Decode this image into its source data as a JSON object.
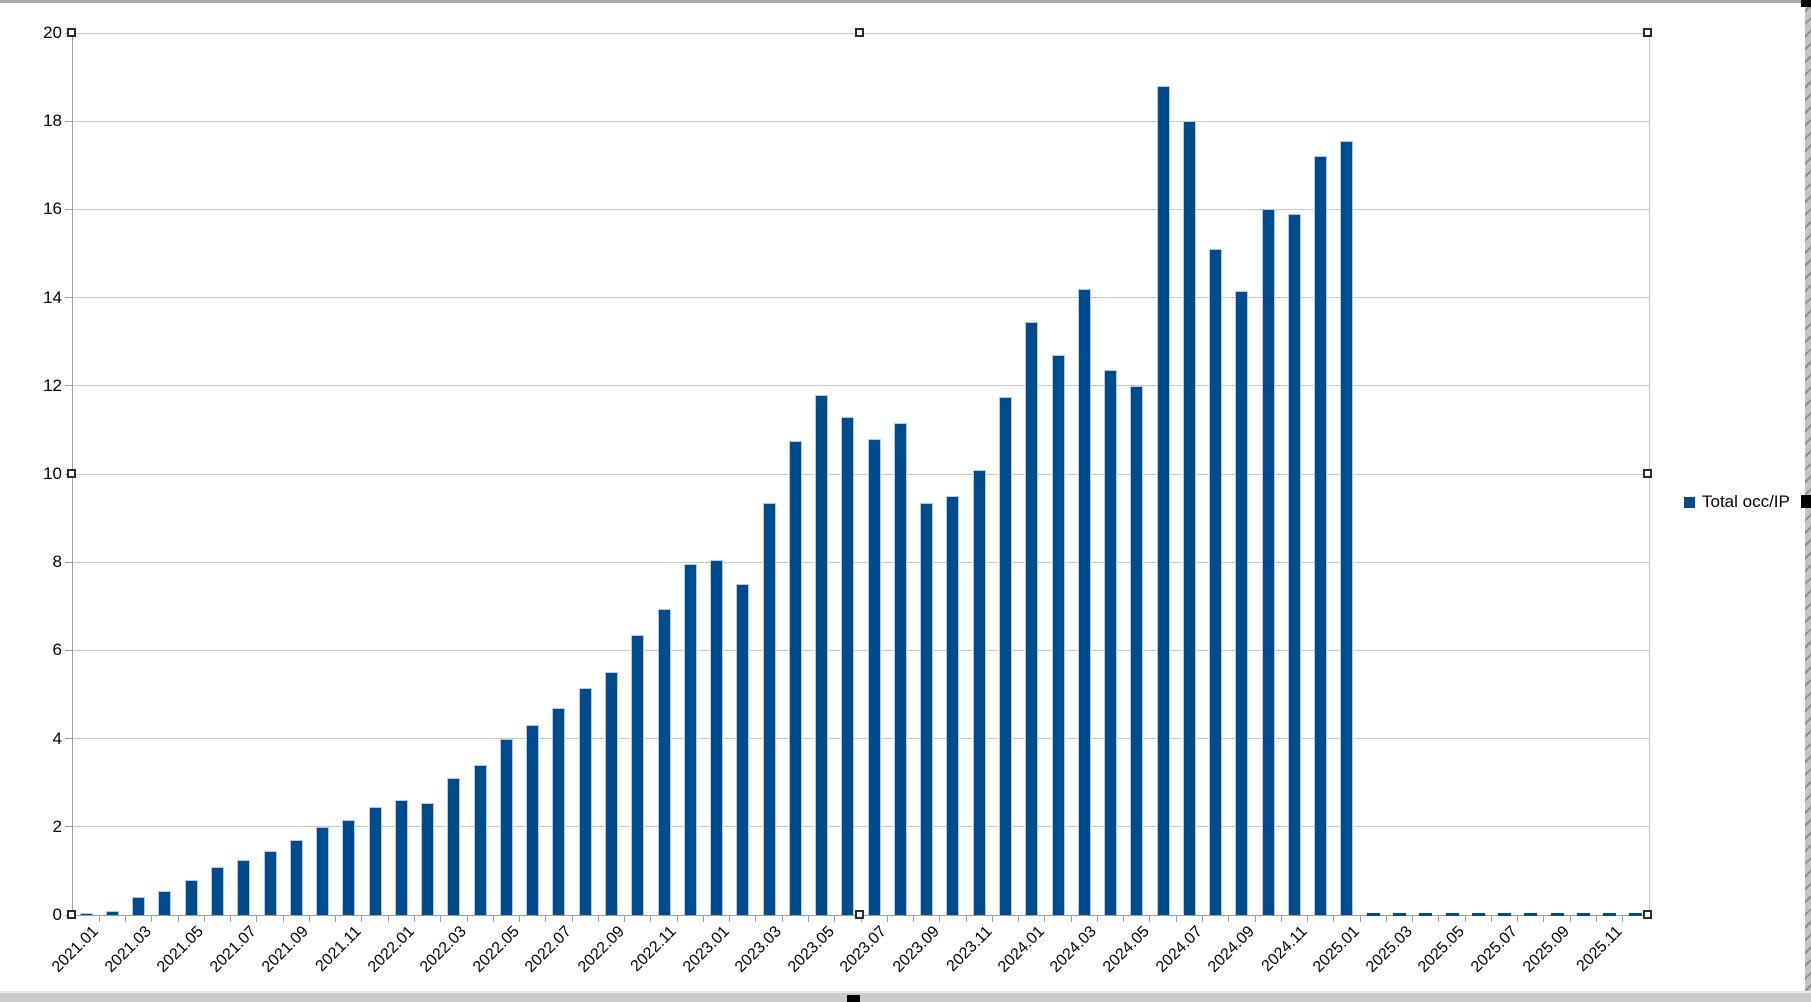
{
  "chart_data": {
    "type": "bar",
    "title": "",
    "legend": {
      "label": "Total occ/IP",
      "position": "right"
    },
    "series_name": "Total occ/IP",
    "series_color": "#004b8c",
    "grid": "horizontal-on",
    "ylim": [
      0,
      20
    ],
    "y_ticks": [
      0,
      2,
      4,
      6,
      8,
      10,
      12,
      14,
      16,
      18,
      20
    ],
    "categories": [
      "2021.01",
      "2021.02",
      "2021.03",
      "2021.04",
      "2021.05",
      "2021.06",
      "2021.07",
      "2021.08",
      "2021.09",
      "2021.10",
      "2021.11",
      "2021.12",
      "2022.01",
      "2022.02",
      "2022.03",
      "2022.04",
      "2022.05",
      "2022.06",
      "2022.07",
      "2022.08",
      "2022.09",
      "2022.10",
      "2022.11",
      "2022.12",
      "2023.01",
      "2023.02",
      "2023.03",
      "2023.04",
      "2023.05",
      "2023.06",
      "2023.07",
      "2023.08",
      "2023.09",
      "2023.10",
      "2023.11",
      "2023.12",
      "2024.01",
      "2024.02",
      "2024.03",
      "2024.04",
      "2024.05",
      "2024.06",
      "2024.07",
      "2024.08",
      "2024.09",
      "2024.10",
      "2024.11",
      "2024.12",
      "2025.01",
      "2025.02",
      "2025.03",
      "2025.04",
      "2025.05",
      "2025.06",
      "2025.07",
      "2025.08",
      "2025.09",
      "2025.10",
      "2025.11",
      "2025.12"
    ],
    "values": [
      0.05,
      0.1,
      0.4,
      0.55,
      0.8,
      1.1,
      1.25,
      1.45,
      1.7,
      2.0,
      2.15,
      2.45,
      2.6,
      2.55,
      3.1,
      3.4,
      4.0,
      4.3,
      4.7,
      5.15,
      5.5,
      6.35,
      6.95,
      7.95,
      8.05,
      7.5,
      9.35,
      10.75,
      11.8,
      11.3,
      10.8,
      11.15,
      9.35,
      9.5,
      10.1,
      11.75,
      13.45,
      12.7,
      14.2,
      12.35,
      12.0,
      18.8,
      18.0,
      15.1,
      14.15,
      16.0,
      15.9,
      17.2,
      17.55,
      0,
      0,
      0,
      0,
      0,
      0,
      0,
      0,
      0,
      0,
      0
    ],
    "x_tick_labels_shown": [
      "2021.01",
      "2021.03",
      "2021.05",
      "2021.07",
      "2021.09",
      "2021.11",
      "2022.01",
      "2022.03",
      "2022.05",
      "2022.07",
      "2022.09",
      "2022.11",
      "2023.01",
      "2023.03",
      "2023.05",
      "2023.07",
      "2023.09",
      "2023.11",
      "2024.01",
      "2024.03",
      "2024.05",
      "2024.07",
      "2024.09",
      "2024.11",
      "2025.01",
      "2025.03",
      "2025.05",
      "2025.07",
      "2025.09",
      "2025.11"
    ]
  }
}
